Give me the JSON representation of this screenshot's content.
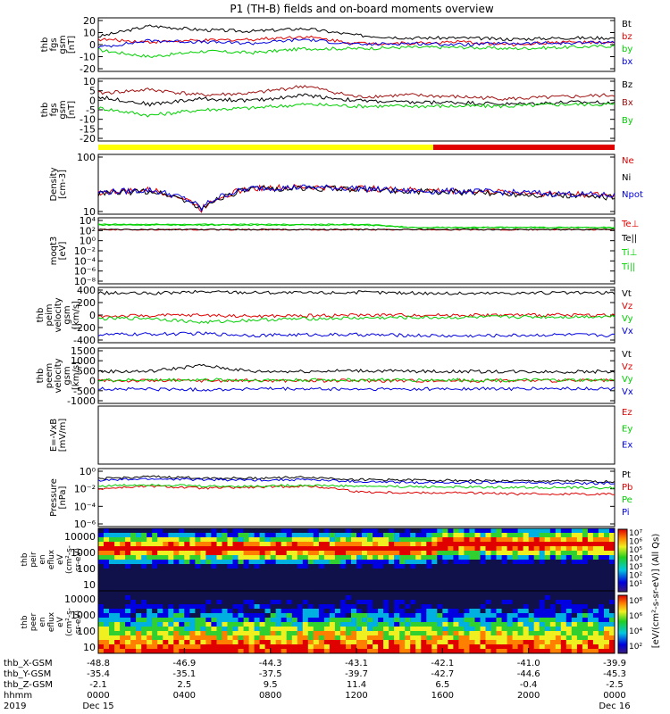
{
  "title": "P1  (TH-B) fields and on-board moments overview",
  "chart_data": {
    "type": "line",
    "title": "P1  (TH-B) fields and on-board moments overview",
    "x_tick_labels": [
      "0000",
      "0400",
      "0800",
      "1200",
      "1600",
      "2000",
      "0000"
    ],
    "x_axis_rows": [
      {
        "label": "thb_X-GSM",
        "values": [
          "-48.8",
          "-46.9",
          "-44.3",
          "-43.1",
          "-42.1",
          "-41.0",
          "-39.9"
        ]
      },
      {
        "label": "thb_Y-GSM",
        "values": [
          "-35.4",
          "-35.1",
          "-37.5",
          "-39.7",
          "-42.7",
          "-44.6",
          "-45.3"
        ]
      },
      {
        "label": "thb_Z-GSM",
        "values": [
          "-2.1",
          "2.5",
          "9.5",
          "11.4",
          "6.5",
          "-0.4",
          "-2.5"
        ]
      },
      {
        "label": "hhmm",
        "values": [
          "0000",
          "0400",
          "0800",
          "1200",
          "1600",
          "2000",
          "0000"
        ]
      },
      {
        "label": "2019",
        "values": [
          "Dec 15",
          "",
          "",
          "",
          "",
          "",
          "Dec 16"
        ]
      }
    ],
    "panels": [
      {
        "ylabel": [
          "thb",
          "fgs",
          "gsm",
          "[nT]"
        ],
        "yticks": [
          "20",
          "10",
          "0",
          "-10",
          "-20"
        ],
        "ylim": [
          -20,
          20
        ],
        "series": [
          {
            "name": "Bt",
            "color": "#000000",
            "values": [
              6,
              14,
              11,
              10,
              12,
              7,
              5,
              5,
              4,
              5,
              5
            ]
          },
          {
            "name": "bz",
            "color": "#e00000",
            "values": [
              4,
              2,
              3,
              4,
              6,
              1,
              1,
              2,
              0,
              2,
              1
            ]
          },
          {
            "name": "by",
            "color": "#00d000",
            "values": [
              -4,
              -9,
              -5,
              -6,
              -3,
              -3,
              -2,
              -2,
              -3,
              -2,
              -1
            ]
          },
          {
            "name": "bx",
            "color": "#0000e0",
            "values": [
              -2,
              3,
              2,
              1,
              4,
              0,
              1,
              0,
              1,
              1,
              2
            ]
          }
        ]
      },
      {
        "ylabel": [
          "thb",
          "fgs",
          "gsm",
          "[nT]"
        ],
        "yticks": [
          "10",
          "5",
          "0",
          "-5",
          "-10",
          "-15",
          "-20"
        ],
        "ylim": [
          -22,
          12
        ],
        "series": [
          {
            "name": "Bz",
            "color": "#000000",
            "values": [
              2,
              -2,
              1,
              0,
              3,
              0,
              -1,
              -1,
              -2,
              -1,
              -1
            ]
          },
          {
            "name": "Bx",
            "color": "#a01010",
            "values": [
              4,
              6,
              3,
              4,
              8,
              2,
              3,
              2,
              1,
              2,
              3
            ]
          },
          {
            "name": "By",
            "color": "#00d000",
            "values": [
              -4,
              -8,
              -5,
              -4,
              -2,
              -3,
              -3,
              -3,
              -3,
              -2,
              -2
            ]
          }
        ]
      },
      {
        "ylabel": [
          "Density",
          "[cm-3]"
        ],
        "yticks": [
          "100",
          "10"
        ],
        "ylog": true,
        "ylim": [
          1,
          300
        ],
        "series": [
          {
            "name": "Ne",
            "color": "#e00000",
            "values": [
              8,
              10,
              1.5,
              12,
              13,
              12,
              10,
              9,
              8,
              7,
              6
            ]
          },
          {
            "name": "Ni",
            "color": "#000000",
            "values": [
              7,
              9,
              1.4,
              11,
              12,
              11,
              9,
              8,
              7,
              6,
              5
            ]
          },
          {
            "name": "Npot",
            "color": "#0000e0",
            "values": [
              8,
              10,
              1.6,
              12,
              13,
              12,
              9,
              9,
              8,
              7,
              6
            ]
          }
        ]
      },
      {
        "ylabel": [
          "moqt3",
          "[eV]"
        ],
        "yticks": [
          "10⁴",
          "10²",
          "10⁰",
          "10⁻²",
          "10⁻⁴",
          "10⁻⁶",
          "10⁻⁸"
        ],
        "ylog": true,
        "ylim": [
          1e-09,
          100000.0
        ],
        "series": [
          {
            "name": "Te⊥",
            "color": "#e00000",
            "values": [
              300,
              300,
              300,
              300,
              300,
              300,
              300,
              300,
              300,
              300,
              300
            ]
          },
          {
            "name": "Te||",
            "color": "#000000",
            "values": [
              320,
              320,
              320,
              320,
              320,
              320,
              330,
              330,
              330,
              330,
              330
            ]
          },
          {
            "name": "Ti⊥",
            "color": "#00d000",
            "values": [
              3000,
              3000,
              3000,
              3000,
              3000,
              3000,
              800,
              800,
              800,
              800,
              800
            ]
          },
          {
            "name": "Ti||",
            "color": "#00d000",
            "values": [
              4000,
              4000,
              4000,
              4000,
              4000,
              4000,
              900,
              900,
              900,
              900,
              900
            ]
          }
        ]
      },
      {
        "ylabel": [
          "thb",
          "peim",
          "velocity",
          "gsm",
          "[km/s]"
        ],
        "yticks": [
          "400",
          "200",
          "0",
          "-200",
          "-400"
        ],
        "ylim": [
          -450,
          450
        ],
        "series": [
          {
            "name": "Vt",
            "color": "#000000",
            "values": [
              360,
              350,
              380,
              370,
              360,
              370,
              360,
              350,
              360,
              360,
              360
            ]
          },
          {
            "name": "Vz",
            "color": "#e00000",
            "values": [
              -20,
              -10,
              0,
              -20,
              -10,
              0,
              0,
              0,
              0,
              0,
              0
            ]
          },
          {
            "name": "Vy",
            "color": "#00d000",
            "values": [
              -60,
              -50,
              -120,
              -80,
              -60,
              -50,
              -40,
              -40,
              -30,
              -30,
              -20
            ]
          },
          {
            "name": "Vx",
            "color": "#0000e0",
            "values": [
              -320,
              -310,
              -300,
              -330,
              -320,
              -320,
              -330,
              -340,
              -330,
              -320,
              -330
            ]
          }
        ]
      },
      {
        "ylabel": [
          "thb",
          "peem",
          "velocity",
          "gsm",
          "[km/s]"
        ],
        "yticks": [
          "1500",
          "1000",
          "500",
          "0",
          "-500",
          "-1000"
        ],
        "ylim": [
          -1050,
          1500
        ],
        "series": [
          {
            "name": "Vt",
            "color": "#000000",
            "values": [
              420,
              430,
              700,
              420,
              430,
              460,
              430,
              420,
              420,
              410,
              420
            ]
          },
          {
            "name": "Vz",
            "color": "#e00000",
            "values": [
              0,
              0,
              0,
              0,
              0,
              0,
              0,
              0,
              0,
              0,
              0
            ]
          },
          {
            "name": "Vy",
            "color": "#00d000",
            "values": [
              20,
              30,
              40,
              20,
              30,
              30,
              30,
              30,
              20,
              20,
              20
            ]
          },
          {
            "name": "Vx",
            "color": "#0000e0",
            "values": [
              -380,
              -390,
              -420,
              -380,
              -390,
              -400,
              -390,
              -380,
              -380,
              -370,
              -380
            ]
          }
        ]
      },
      {
        "ylabel": [
          "E=-VxB",
          "[mV/m]"
        ],
        "yticks": [],
        "ylim": [
          -1,
          1
        ],
        "series": [
          {
            "name": "Ez",
            "color": "#e00000",
            "values": []
          },
          {
            "name": "Ey",
            "color": "#00d000",
            "values": []
          },
          {
            "name": "Ex",
            "color": "#0000e0",
            "values": []
          }
        ]
      },
      {
        "ylabel": [
          "Pressure",
          "[nPa]"
        ],
        "yticks": [
          "10⁰",
          "10⁻²",
          "10⁻⁴",
          "10⁻⁶"
        ],
        "ylog": true,
        "ylim": [
          1e-06,
          1.5
        ],
        "series": [
          {
            "name": "Pt",
            "color": "#000000",
            "values": [
              0.12,
              0.2,
              0.15,
              0.14,
              0.18,
              0.1,
              0.09,
              0.08,
              0.07,
              0.07,
              0.06
            ]
          },
          {
            "name": "Pb",
            "color": "#e00000",
            "values": [
              0.01,
              0.02,
              0.012,
              0.015,
              0.02,
              0.005,
              0.004,
              0.004,
              0.003,
              0.003,
              0.003
            ]
          },
          {
            "name": "Pe",
            "color": "#00d000",
            "values": [
              0.02,
              0.03,
              0.02,
              0.02,
              0.025,
              0.02,
              0.018,
              0.016,
              0.015,
              0.014,
              0.013
            ]
          },
          {
            "name": "Pi",
            "color": "#0000e0",
            "values": [
              0.08,
              0.12,
              0.1,
              0.09,
              0.1,
              0.06,
              0.05,
              0.05,
              0.05,
              0.04,
              0.04
            ]
          }
        ]
      }
    ],
    "spectrograms": [
      {
        "ylabel": [
          "thb",
          "peir",
          "en",
          "eflux",
          "eV",
          "(cm²-s-",
          "sr-eV)"
        ],
        "yticks": [
          "10000",
          "1000",
          "100",
          "10"
        ]
      },
      {
        "ylabel": [
          "thb",
          "peer",
          "en",
          "eflux",
          "eV",
          "(cm²-s-",
          "sr-eV)"
        ],
        "yticks": [
          "10000",
          "1000",
          "100",
          "10"
        ]
      }
    ],
    "colorbar": {
      "label": "[eV/(cm²-s-sr-eV)] (All Qs)",
      "ion_ticks": [
        "10⁷",
        "10⁶",
        "10⁵",
        "10⁴",
        "10³",
        "10²",
        "10¹"
      ],
      "electron_ticks": [
        "10⁸",
        "10⁶",
        "10⁴",
        "10²"
      ]
    }
  }
}
